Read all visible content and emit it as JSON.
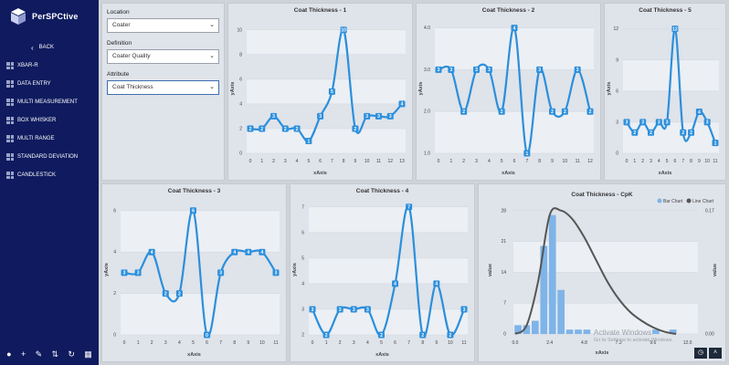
{
  "brand": {
    "name": "PerSPCtive"
  },
  "sidebar": {
    "back_label": "BACK",
    "items": [
      {
        "label": "XBAR-R"
      },
      {
        "label": "DATA ENTRY"
      },
      {
        "label": "MULTI MEASUREMENT"
      },
      {
        "label": "BOX WHISKER"
      },
      {
        "label": "MULTI RANGE"
      },
      {
        "label": "STANDARD DEVIATION"
      },
      {
        "label": "CANDLESTICK"
      }
    ],
    "bottom_icons": [
      "user-icon",
      "plus-icon",
      "pencil-icon",
      "sort-icon",
      "refresh-icon",
      "calendar-icon"
    ]
  },
  "filters": {
    "location": {
      "label": "Location",
      "value": "Coater"
    },
    "definition": {
      "label": "Definition",
      "value": "Coater Quality"
    },
    "attribute": {
      "label": "Attribute",
      "value": "Coat Thickness"
    }
  },
  "colors": {
    "series": "#2b8fdc",
    "bar": "#7fb4e8",
    "curve": "#555555",
    "sidebar": "#0f1b5e"
  },
  "chart_data": [
    {
      "type": "line",
      "title": "Coat Thickness - 1",
      "xlabel": "xAxis",
      "ylabel": "yAxis",
      "x": [
        0,
        1,
        2,
        3,
        4,
        5,
        6,
        7,
        8,
        9,
        10,
        11,
        12,
        13
      ],
      "values": [
        2,
        2,
        3,
        2,
        2,
        1,
        3,
        5,
        10,
        2,
        3,
        3,
        3,
        4
      ],
      "yticks": [
        0,
        2,
        4,
        6,
        8,
        10
      ],
      "ylim": [
        0,
        10.5
      ],
      "grid": true
    },
    {
      "type": "line",
      "title": "Coat Thickness - 2",
      "xlabel": "xAxis",
      "ylabel": "yAxis",
      "x": [
        0,
        1,
        2,
        3,
        4,
        5,
        6,
        7,
        8,
        9,
        10,
        11,
        12
      ],
      "values": [
        3,
        3,
        2,
        3,
        3,
        2,
        4,
        1,
        3,
        2,
        2,
        3,
        2
      ],
      "yticks": [
        "1.0",
        "2.0",
        "3.0",
        "4.0"
      ],
      "ylim": [
        1,
        4.1
      ],
      "grid": true
    },
    {
      "type": "line",
      "title": "Coat Thickness - 5",
      "xlabel": "xAxis",
      "ylabel": "yAxis",
      "x": [
        0,
        1,
        2,
        3,
        4,
        5,
        6,
        7,
        8,
        9,
        10,
        11
      ],
      "values": [
        3,
        2,
        3,
        2,
        3,
        3,
        12,
        2,
        2,
        4,
        3,
        1
      ],
      "yticks": [
        0,
        3,
        6,
        9,
        12
      ],
      "ylim": [
        0,
        12.5
      ],
      "grid": true
    },
    {
      "type": "line",
      "title": "Coat Thickness - 3",
      "xlabel": "xAxis",
      "ylabel": "yAxis",
      "x": [
        0,
        1,
        2,
        3,
        4,
        5,
        6,
        7,
        8,
        9,
        10,
        11
      ],
      "values": [
        3,
        3,
        4,
        2,
        2,
        6,
        0,
        3,
        4,
        4,
        4,
        3
      ],
      "yticks": [
        0,
        2,
        4,
        6
      ],
      "ylim": [
        0,
        6.3
      ],
      "grid": true
    },
    {
      "type": "line",
      "title": "Coat Thickness - 4",
      "xlabel": "xAxis",
      "ylabel": "yAxis",
      "x": [
        0,
        1,
        2,
        3,
        4,
        5,
        6,
        7,
        8,
        9,
        10,
        11
      ],
      "values": [
        3,
        2,
        3,
        3,
        3,
        2,
        4,
        7,
        2,
        4,
        2,
        3
      ],
      "yticks": [
        2,
        3,
        4,
        5,
        6,
        7
      ],
      "ylim": [
        2,
        7.1
      ],
      "grid": true
    },
    {
      "type": "bar",
      "title": "Coat Thickness - CpK",
      "xlabel": "xAxis",
      "ylabel": "value",
      "legend": [
        "Bar Chart",
        "Line Chart"
      ],
      "legend_placement": "top-right",
      "x": [
        0,
        0.6,
        1.2,
        1.8,
        2.4,
        3.0,
        3.6,
        4.2,
        4.8,
        5.4,
        6.0,
        6.6,
        7.2,
        7.8,
        8.4,
        9.0,
        9.6,
        10.2,
        10.8,
        11.4
      ],
      "values": [
        2,
        2,
        3,
        20,
        27,
        10,
        1,
        1,
        1,
        0,
        0,
        0,
        0,
        0,
        0,
        0,
        1,
        0,
        1,
        0
      ],
      "xticks": [
        "0.0",
        "2.4",
        "4.8",
        "7.2",
        "9.6",
        "12.0"
      ],
      "yticks": [
        0,
        7,
        14,
        21,
        28
      ],
      "ylim": [
        0,
        29
      ],
      "right_ticks": [
        "0.00",
        "0.17"
      ],
      "line_series": {
        "name": "Line Chart",
        "x": [
          0,
          0.8,
          1.6,
          2.4,
          3.2,
          4.0,
          4.8,
          5.6,
          6.4,
          7.2,
          8.0,
          8.8,
          9.6,
          10.4,
          11.2
        ],
        "values": [
          0,
          2,
          12,
          27,
          28,
          26,
          22,
          17,
          12,
          8,
          5,
          3,
          1.5,
          0.5,
          0
        ]
      }
    }
  ],
  "watermark": {
    "line1": "Activate Windows",
    "line2": "Go to Settings to activate Windows."
  }
}
